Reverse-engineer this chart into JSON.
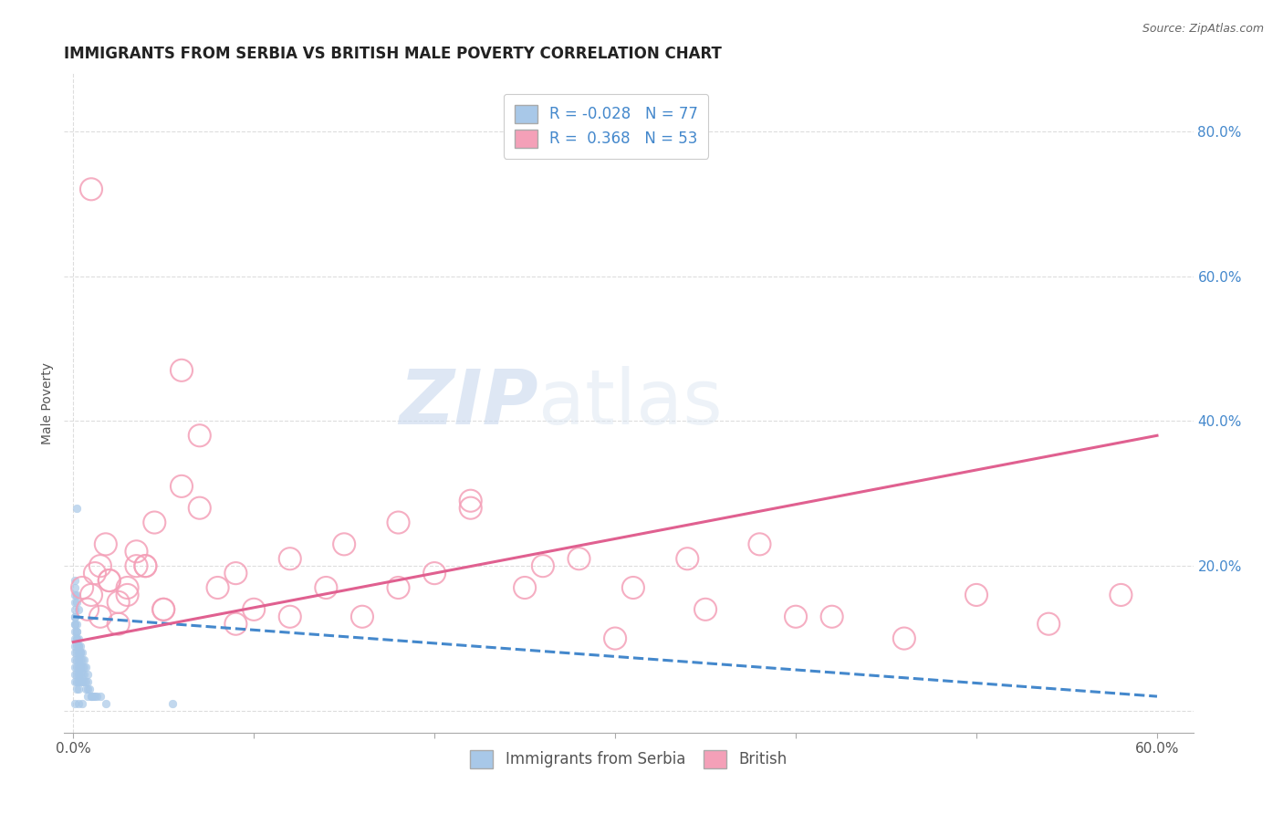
{
  "title": "IMMIGRANTS FROM SERBIA VS BRITISH MALE POVERTY CORRELATION CHART",
  "source_text": "Source: ZipAtlas.com",
  "xlabel": "",
  "ylabel": "Male Poverty",
  "xlim": [
    -0.005,
    0.62
  ],
  "ylim": [
    -0.03,
    0.88
  ],
  "xtick_labels": [
    "0.0%",
    "",
    "",
    "",
    "",
    "",
    "60.0%"
  ],
  "xtick_vals": [
    0.0,
    0.1,
    0.2,
    0.3,
    0.4,
    0.5,
    0.6
  ],
  "ytick_labels": [
    "",
    "20.0%",
    "40.0%",
    "60.0%",
    "80.0%"
  ],
  "ytick_vals": [
    0.0,
    0.2,
    0.4,
    0.6,
    0.8
  ],
  "legend_r1": "R = -0.028",
  "legend_n1": "N = 77",
  "legend_r2": "R =  0.368",
  "legend_n2": "N = 53",
  "blue_color": "#a8c8e8",
  "pink_color": "#f4a0b8",
  "blue_line_color": "#4488cc",
  "pink_line_color": "#e06090",
  "background_color": "#ffffff",
  "watermark_zip": "ZIP",
  "watermark_atlas": "atlas",
  "grid_color": "#dddddd",
  "title_fontsize": 12,
  "axis_label_fontsize": 10,
  "tick_fontsize": 11,
  "blue_trend_x": [
    0.0,
    0.6
  ],
  "blue_trend_y": [
    0.13,
    0.02
  ],
  "pink_trend_x": [
    0.0,
    0.6
  ],
  "pink_trend_y": [
    0.095,
    0.38
  ],
  "blue_scatter_x": [
    0.001,
    0.001,
    0.001,
    0.001,
    0.001,
    0.001,
    0.001,
    0.001,
    0.001,
    0.001,
    0.002,
    0.002,
    0.002,
    0.002,
    0.002,
    0.002,
    0.002,
    0.002,
    0.002,
    0.003,
    0.003,
    0.003,
    0.003,
    0.003,
    0.003,
    0.003,
    0.004,
    0.004,
    0.004,
    0.004,
    0.004,
    0.005,
    0.005,
    0.005,
    0.005,
    0.006,
    0.006,
    0.006,
    0.007,
    0.007,
    0.008,
    0.008,
    0.009,
    0.01,
    0.011,
    0.012,
    0.013,
    0.015,
    0.018,
    0.001,
    0.001,
    0.001,
    0.001,
    0.001,
    0.002,
    0.002,
    0.002,
    0.003,
    0.003,
    0.004,
    0.004,
    0.005,
    0.006,
    0.007,
    0.008,
    0.001,
    0.001,
    0.002,
    0.002,
    0.003,
    0.01,
    0.008,
    0.005,
    0.003,
    0.001,
    0.055,
    0.002
  ],
  "blue_scatter_y": [
    0.08,
    0.09,
    0.1,
    0.11,
    0.12,
    0.13,
    0.06,
    0.07,
    0.05,
    0.04,
    0.08,
    0.09,
    0.07,
    0.06,
    0.05,
    0.04,
    0.03,
    0.1,
    0.11,
    0.07,
    0.08,
    0.06,
    0.05,
    0.04,
    0.03,
    0.09,
    0.06,
    0.07,
    0.05,
    0.04,
    0.08,
    0.05,
    0.06,
    0.04,
    0.07,
    0.04,
    0.05,
    0.06,
    0.03,
    0.04,
    0.03,
    0.04,
    0.03,
    0.02,
    0.02,
    0.02,
    0.02,
    0.02,
    0.01,
    0.14,
    0.15,
    0.16,
    0.12,
    0.13,
    0.12,
    0.11,
    0.1,
    0.1,
    0.09,
    0.09,
    0.08,
    0.08,
    0.07,
    0.06,
    0.05,
    0.17,
    0.18,
    0.16,
    0.15,
    0.14,
    0.02,
    0.02,
    0.01,
    0.01,
    0.01,
    0.01,
    0.28
  ],
  "pink_scatter_x": [
    0.005,
    0.008,
    0.01,
    0.012,
    0.015,
    0.018,
    0.02,
    0.025,
    0.03,
    0.035,
    0.04,
    0.045,
    0.05,
    0.06,
    0.07,
    0.08,
    0.09,
    0.1,
    0.12,
    0.14,
    0.16,
    0.18,
    0.2,
    0.22,
    0.25,
    0.28,
    0.31,
    0.34,
    0.38,
    0.42,
    0.46,
    0.5,
    0.54,
    0.58,
    0.015,
    0.025,
    0.035,
    0.05,
    0.07,
    0.09,
    0.12,
    0.15,
    0.18,
    0.22,
    0.26,
    0.3,
    0.35,
    0.4,
    0.01,
    0.02,
    0.03,
    0.04,
    0.06
  ],
  "pink_scatter_y": [
    0.17,
    0.14,
    0.16,
    0.19,
    0.2,
    0.23,
    0.18,
    0.15,
    0.17,
    0.22,
    0.2,
    0.26,
    0.14,
    0.47,
    0.38,
    0.17,
    0.19,
    0.14,
    0.13,
    0.17,
    0.13,
    0.26,
    0.19,
    0.29,
    0.17,
    0.21,
    0.17,
    0.21,
    0.23,
    0.13,
    0.1,
    0.16,
    0.12,
    0.16,
    0.13,
    0.12,
    0.2,
    0.14,
    0.28,
    0.12,
    0.21,
    0.23,
    0.17,
    0.28,
    0.2,
    0.1,
    0.14,
    0.13,
    0.72,
    0.18,
    0.16,
    0.2,
    0.31
  ]
}
